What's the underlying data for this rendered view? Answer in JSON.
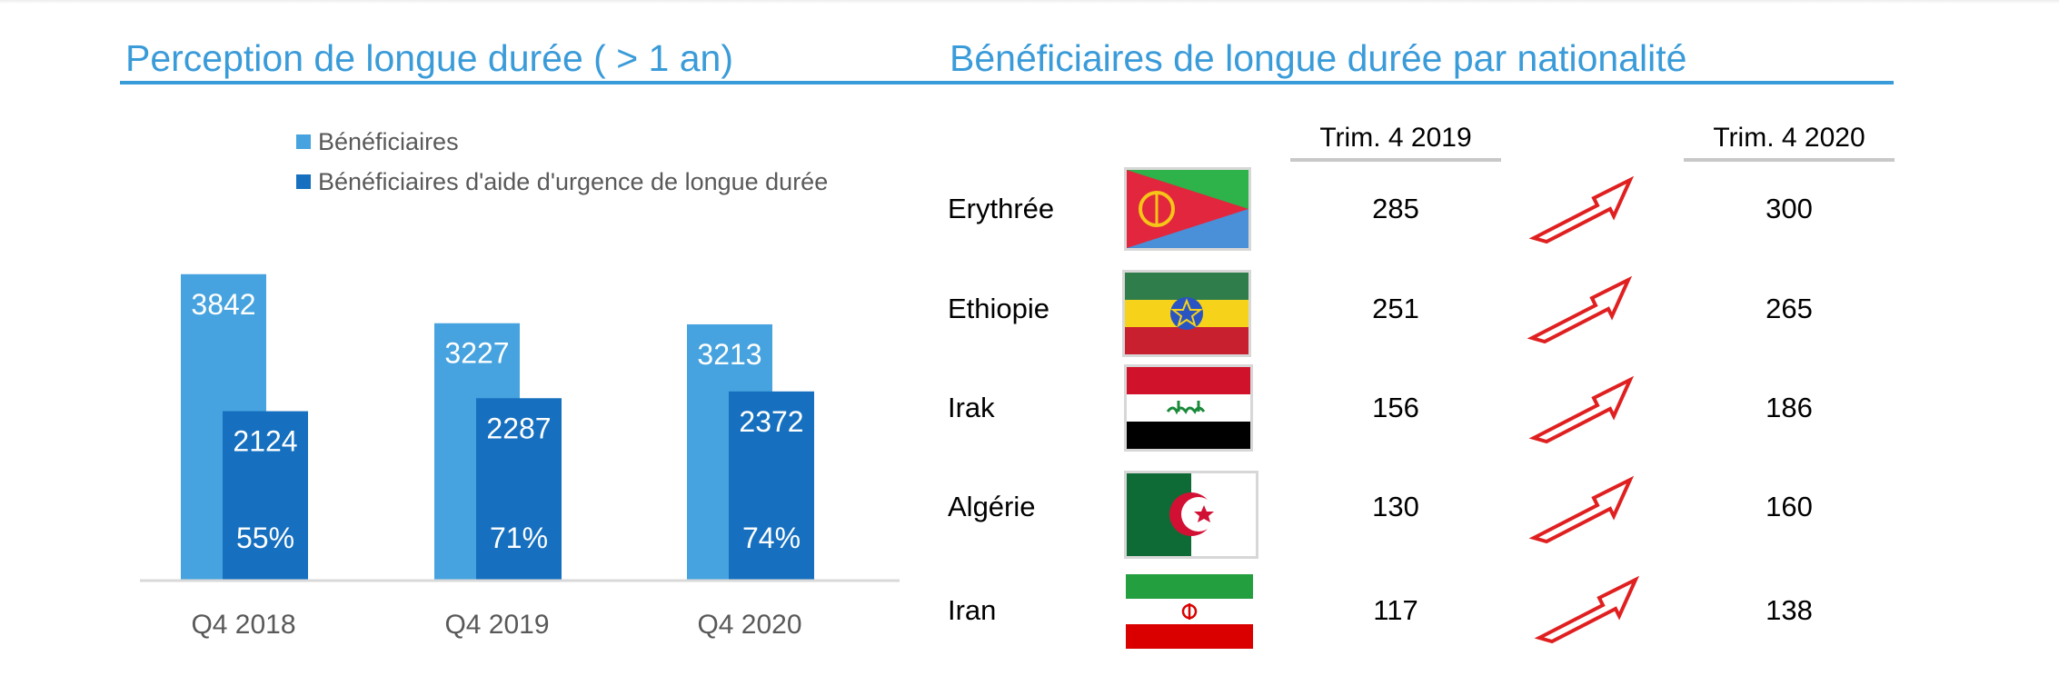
{
  "left_panel": {
    "title": "Perception de longue durée ( > 1 an)"
  },
  "right_panel": {
    "title": "Bénéficiaires de longue durée par nationalité",
    "columns": [
      "Trim. 4 2019",
      "Trim. 4 2020"
    ],
    "rows": [
      {
        "country": "Erythrée",
        "flag": "eritrea-flag",
        "v2019": "285",
        "v2020": "300",
        "trend": "up-arrow"
      },
      {
        "country": "Ethiopie",
        "flag": "ethiopia-flag",
        "v2019": "251",
        "v2020": "265",
        "trend": "up-arrow"
      },
      {
        "country": "Irak",
        "flag": "iraq-flag",
        "v2019": "156",
        "v2020": "186",
        "trend": "up-arrow"
      },
      {
        "country": "Algérie",
        "flag": "algeria-flag",
        "v2019": "130",
        "v2020": "160",
        "trend": "up-arrow"
      },
      {
        "country": "Iran",
        "flag": "iran-flag",
        "v2019": "117",
        "v2020": "138",
        "trend": "up-arrow"
      }
    ],
    "arrow_color": "#e02020"
  },
  "chart_data": {
    "type": "bar",
    "categories": [
      "Q4 2018",
      "Q4 2019",
      "Q4 2020"
    ],
    "series": [
      {
        "name": "Bénéficiaires",
        "values": [
          3842,
          3227,
          3213
        ],
        "labels": [
          "3842",
          "3227",
          "3213"
        ],
        "color": "#46a3df"
      },
      {
        "name": "Bénéficiaires d'aide d'urgence de longue durée",
        "values": [
          2124,
          2287,
          2372
        ],
        "labels": [
          "2124",
          "2287",
          "2372"
        ],
        "color": "#1670bf"
      }
    ],
    "share_labels": [
      "55%",
      "71%",
      "74%"
    ],
    "title": "",
    "xlabel": "",
    "ylabel": "",
    "ylim": [
      0,
      4500
    ],
    "grid": false,
    "legend": "top"
  }
}
